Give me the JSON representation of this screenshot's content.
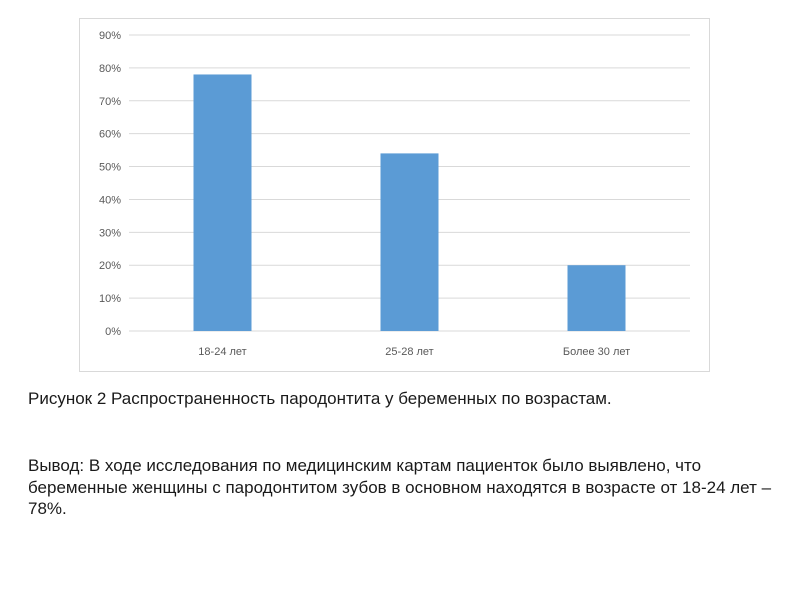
{
  "chart_data": {
    "type": "bar",
    "categories": [
      "18-24 лет",
      "25-28 лет",
      "Более 30 лет"
    ],
    "values": [
      78,
      54,
      20
    ],
    "value_format": "percent",
    "ylim": [
      0,
      90
    ],
    "yticks": [
      0,
      10,
      20,
      30,
      40,
      50,
      60,
      70,
      80,
      90
    ],
    "ytick_labels": [
      "0%",
      "10%",
      "20%",
      "30%",
      "40%",
      "50%",
      "60%",
      "70%",
      "80%",
      "90%"
    ],
    "grid": true,
    "legend": "none",
    "title": "",
    "xlabel": "",
    "ylabel": "",
    "bar_color": "#5b9bd5",
    "grid_color": "#d9d9d9",
    "tick_label_color": "#595959"
  },
  "caption": {
    "text": "Рисунок 2 Распространенность пародонтита у беременных по возрастам."
  },
  "conclusion": {
    "text": "Вывод: В ходе исследования по медицинским картам пациенток было выявлено, что беременные женщины с пародонтитом зубов в основном находятся в возрасте от 18-24 лет – 78%."
  }
}
